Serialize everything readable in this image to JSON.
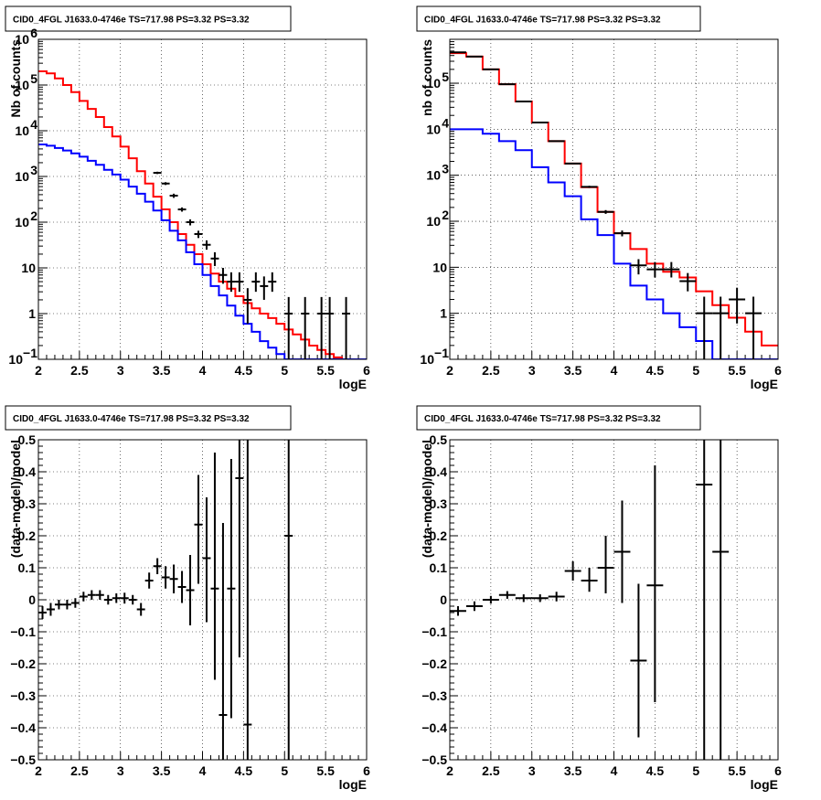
{
  "chart_data": [
    {
      "type": "line",
      "title": "CID0_4FGL J1633.0-4746e TS=717.98 PS=3.32 PS=3.32",
      "xlabel": "logE",
      "ylabel": "Nb of counts",
      "xlim": [
        2,
        6
      ],
      "ylim": [
        0.1,
        1000000
      ],
      "yscale": "log",
      "grid": true,
      "xticks": [
        "2",
        "2.5",
        "3",
        "3.5",
        "4",
        "4.5",
        "5",
        "5.5",
        "6"
      ],
      "yticks": [
        {
          "v": 0.1,
          "t": "10",
          "sup": "−1"
        },
        {
          "v": 1,
          "t": "1",
          "sup": ""
        },
        {
          "v": 10,
          "t": "10",
          "sup": ""
        },
        {
          "v": 100,
          "t": "10",
          "sup": "2"
        },
        {
          "v": 1000,
          "t": "10",
          "sup": "3"
        },
        {
          "v": 10000,
          "t": "10",
          "sup": "4"
        },
        {
          "v": 100000,
          "t": "10",
          "sup": "5"
        },
        {
          "v": 1000000,
          "t": "10",
          "sup": "6"
        }
      ],
      "bin_edges": [
        2.0,
        2.1,
        2.2,
        2.3,
        2.4,
        2.5,
        2.6,
        2.7,
        2.8,
        2.9,
        3.0,
        3.1,
        3.2,
        3.3,
        3.4,
        3.5,
        3.6,
        3.7,
        3.8,
        3.9,
        4.0,
        4.1,
        4.2,
        4.3,
        4.4,
        4.5,
        4.6,
        4.7,
        4.8,
        4.9,
        5.0,
        5.1,
        5.2,
        5.3,
        5.4,
        5.5,
        5.6,
        5.7,
        5.8,
        5.9,
        6.0
      ],
      "series": [
        {
          "color": "#ff0000",
          "style": "step",
          "values": [
            200000,
            180000,
            140000,
            100000,
            70000,
            45000,
            30000,
            20000,
            12000,
            7500,
            4500,
            2500,
            1300,
            700,
            360,
            190,
            100,
            55,
            32,
            20,
            12,
            7.5,
            5,
            3.5,
            2.4,
            1.7,
            1.3,
            1.0,
            0.8,
            0.6,
            0.45,
            0.35,
            0.27,
            0.2,
            0.16,
            0.13,
            0.11,
            0.1,
            0.1,
            0.1
          ]
        },
        {
          "color": "#0000ff",
          "style": "step",
          "values": [
            5000,
            4700,
            4200,
            3700,
            3200,
            2700,
            2200,
            1800,
            1400,
            1100,
            850,
            600,
            420,
            280,
            180,
            110,
            65,
            40,
            22,
            12,
            7,
            4,
            2.5,
            1.5,
            0.9,
            0.6,
            0.4,
            0.25,
            0.18,
            0.13,
            0.1,
            0.1,
            0.1,
            0.1,
            0.1,
            0.1,
            0.1,
            0.1,
            0.1,
            0.1
          ]
        },
        {
          "color": "#000000",
          "style": "errorbar",
          "x": [
            3.45,
            3.55,
            3.65,
            3.75,
            3.85,
            3.95,
            4.05,
            4.15,
            4.25,
            4.35,
            4.45,
            4.55,
            4.65,
            4.75,
            4.85,
            5.05,
            5.25,
            5.45,
            5.55,
            5.75
          ],
          "y": [
            1200,
            700,
            380,
            190,
            100,
            55,
            32,
            16,
            7,
            5,
            5,
            2,
            5,
            4,
            5,
            1,
            1,
            1,
            1,
            1
          ],
          "ylo": [
            1130,
            650,
            340,
            170,
            85,
            45,
            25,
            11,
            4.5,
            3,
            3,
            0.6,
            3,
            2,
            3,
            0.1,
            0.1,
            0.1,
            0.1,
            0.1
          ],
          "yhi": [
            1270,
            750,
            420,
            210,
            115,
            65,
            40,
            22,
            10,
            8,
            8,
            3.6,
            8,
            6.5,
            8,
            2.3,
            2.3,
            2.3,
            2.3,
            2.3
          ]
        }
      ]
    },
    {
      "type": "line",
      "title": "CID0_4FGL J1633.0-4746e TS=717.98 PS=3.32 PS=3.32",
      "xlabel": "logE",
      "ylabel": "nb of counts",
      "xlim": [
        2,
        6
      ],
      "ylim": [
        0.1,
        900000
      ],
      "yscale": "log",
      "grid": true,
      "xticks": [
        "2",
        "2.5",
        "3",
        "3.5",
        "4",
        "4.5",
        "5",
        "5.5",
        "6"
      ],
      "yticks": [
        {
          "v": 0.1,
          "t": "10",
          "sup": "−1"
        },
        {
          "v": 1,
          "t": "1",
          "sup": ""
        },
        {
          "v": 10,
          "t": "10",
          "sup": ""
        },
        {
          "v": 100,
          "t": "10",
          "sup": "2"
        },
        {
          "v": 1000,
          "t": "10",
          "sup": "3"
        },
        {
          "v": 10000,
          "t": "10",
          "sup": "4"
        },
        {
          "v": 100000,
          "t": "10",
          "sup": "5"
        }
      ],
      "bin_edges": [
        2.0,
        2.2,
        2.4,
        2.6,
        2.8,
        3.0,
        3.2,
        3.4,
        3.6,
        3.8,
        4.0,
        4.2,
        4.4,
        4.6,
        4.8,
        5.0,
        5.2,
        5.4,
        5.6,
        5.8,
        6.0
      ],
      "series": [
        {
          "color": "#ff0000",
          "style": "step",
          "values": [
            450000,
            380000,
            200000,
            95000,
            40000,
            14000,
            5500,
            1800,
            550,
            160,
            55,
            25,
            12,
            8,
            6,
            3,
            1.5,
            0.8,
            0.4,
            0.2
          ]
        },
        {
          "color": "#0000ff",
          "style": "step",
          "values": [
            10000,
            10000,
            8000,
            5500,
            3500,
            1500,
            700,
            350,
            110,
            50,
            12,
            4,
            2,
            1,
            0.5,
            0.25,
            0.1,
            0.1,
            0.1,
            0.1
          ]
        },
        {
          "color": "#000000",
          "style": "errorbar",
          "x": [
            2.1,
            2.3,
            2.5,
            2.7,
            2.9,
            3.1,
            3.3,
            3.5,
            3.7,
            3.9,
            4.1,
            4.3,
            4.5,
            4.7,
            4.9,
            5.1,
            5.3,
            5.5,
            5.7
          ],
          "y": [
            470000,
            380000,
            200000,
            95000,
            40000,
            14000,
            5500,
            1800,
            560,
            160,
            55,
            11,
            9,
            9,
            5,
            1,
            1,
            2,
            1
          ],
          "ylo": [
            465000,
            375000,
            197000,
            93500,
            39000,
            13800,
            5400,
            1750,
            530,
            145,
            47,
            7,
            6,
            6,
            3,
            0.1,
            0.1,
            0.6,
            0.1
          ],
          "yhi": [
            475000,
            385000,
            203000,
            96500,
            41000,
            14200,
            5600,
            1850,
            590,
            175,
            63,
            15,
            13,
            13,
            7.5,
            2.3,
            2.3,
            3.6,
            2.3
          ]
        }
      ]
    },
    {
      "type": "scatter",
      "title": "CID0_4FGL J1633.0-4746e TS=717.98 PS=3.32 PS=3.32",
      "xlabel": "logE",
      "ylabel": "(data-model)/model",
      "xlim": [
        2,
        6
      ],
      "ylim": [
        -0.5,
        0.5
      ],
      "yscale": "linear",
      "grid": true,
      "xticks": [
        "2",
        "2.5",
        "3",
        "3.5",
        "4",
        "4.5",
        "5",
        "5.5",
        "6"
      ],
      "yticks": [
        {
          "v": -0.5,
          "t": "−0.5",
          "sup": ""
        },
        {
          "v": -0.4,
          "t": "−0.4",
          "sup": ""
        },
        {
          "v": -0.3,
          "t": "−0.3",
          "sup": ""
        },
        {
          "v": -0.2,
          "t": "−0.2",
          "sup": ""
        },
        {
          "v": -0.1,
          "t": "−0.1",
          "sup": ""
        },
        {
          "v": 0,
          "t": "0",
          "sup": ""
        },
        {
          "v": 0.1,
          "t": "0.1",
          "sup": ""
        },
        {
          "v": 0.2,
          "t": "0.2",
          "sup": ""
        },
        {
          "v": 0.3,
          "t": "0.3",
          "sup": ""
        },
        {
          "v": 0.4,
          "t": "0.4",
          "sup": ""
        },
        {
          "v": 0.5,
          "t": "0.5",
          "sup": ""
        }
      ],
      "series": [
        {
          "color": "#000000",
          "style": "errorbar",
          "xerr": 0.05,
          "x": [
            2.05,
            2.15,
            2.25,
            2.35,
            2.45,
            2.55,
            2.65,
            2.75,
            2.85,
            2.95,
            3.05,
            3.15,
            3.25,
            3.35,
            3.45,
            3.55,
            3.65,
            3.75,
            3.85,
            3.95,
            4.05,
            4.15,
            4.25,
            4.35,
            4.45,
            4.55,
            5.05
          ],
          "y": [
            -0.04,
            -0.03,
            -0.015,
            -0.015,
            -0.01,
            0.01,
            0.015,
            0.015,
            0.0,
            0.005,
            0.005,
            0.0,
            -0.03,
            0.06,
            0.105,
            0.07,
            0.065,
            0.04,
            0.03,
            0.235,
            0.13,
            0.035,
            -0.36,
            0.035,
            0.38,
            -0.39,
            0.2
          ],
          "ylo": [
            -0.06,
            -0.05,
            -0.03,
            -0.03,
            -0.025,
            -0.005,
            0.0,
            0.0,
            -0.015,
            -0.01,
            -0.012,
            -0.015,
            -0.05,
            0.035,
            0.08,
            0.035,
            0.02,
            -0.01,
            -0.08,
            0.05,
            -0.07,
            -0.25,
            -0.5,
            -0.37,
            -0.18,
            -0.5,
            -0.5
          ],
          "yhi": [
            -0.02,
            -0.01,
            0.0,
            0.0,
            0.005,
            0.025,
            0.03,
            0.03,
            0.015,
            0.02,
            0.022,
            0.015,
            -0.01,
            0.085,
            0.13,
            0.105,
            0.11,
            0.09,
            0.14,
            0.39,
            0.32,
            0.46,
            0.24,
            0.44,
            0.5,
            0.5,
            0.5
          ]
        }
      ]
    },
    {
      "type": "scatter",
      "title": "CID0_4FGL J1633.0-4746e TS=717.98 PS=3.32 PS=3.32",
      "xlabel": "logE",
      "ylabel": "(data-model)/model",
      "xlim": [
        2,
        6
      ],
      "ylim": [
        -0.5,
        0.5
      ],
      "yscale": "linear",
      "grid": true,
      "xticks": [
        "2",
        "2.5",
        "3",
        "3.5",
        "4",
        "4.5",
        "5",
        "5.5",
        "6"
      ],
      "yticks": [
        {
          "v": -0.5,
          "t": "−0.5",
          "sup": ""
        },
        {
          "v": -0.4,
          "t": "−0.4",
          "sup": ""
        },
        {
          "v": -0.3,
          "t": "−0.3",
          "sup": ""
        },
        {
          "v": -0.2,
          "t": "−0.2",
          "sup": ""
        },
        {
          "v": -0.1,
          "t": "−0.1",
          "sup": ""
        },
        {
          "v": 0,
          "t": "0",
          "sup": ""
        },
        {
          "v": 0.1,
          "t": "0.1",
          "sup": ""
        },
        {
          "v": 0.2,
          "t": "0.2",
          "sup": ""
        },
        {
          "v": 0.3,
          "t": "0.3",
          "sup": ""
        },
        {
          "v": 0.4,
          "t": "0.4",
          "sup": ""
        },
        {
          "v": 0.5,
          "t": "0.5",
          "sup": ""
        }
      ],
      "series": [
        {
          "color": "#000000",
          "style": "errorbar",
          "xerr": 0.1,
          "x": [
            2.1,
            2.3,
            2.5,
            2.7,
            2.9,
            3.1,
            3.3,
            3.5,
            3.7,
            3.9,
            4.1,
            4.3,
            4.5,
            5.1,
            5.3
          ],
          "y": [
            -0.035,
            -0.02,
            0.0,
            0.015,
            0.005,
            0.005,
            0.01,
            0.09,
            0.06,
            0.1,
            0.15,
            -0.19,
            0.045,
            0.36,
            0.15
          ],
          "ylo": [
            -0.05,
            -0.035,
            -0.012,
            0.003,
            -0.007,
            -0.007,
            -0.005,
            0.06,
            0.025,
            0.02,
            -0.01,
            -0.43,
            -0.32,
            -0.5,
            -0.5
          ],
          "yhi": [
            -0.02,
            -0.005,
            0.012,
            0.027,
            0.017,
            0.017,
            0.025,
            0.12,
            0.1,
            0.2,
            0.31,
            0.05,
            0.42,
            0.5,
            0.5
          ]
        }
      ]
    }
  ]
}
